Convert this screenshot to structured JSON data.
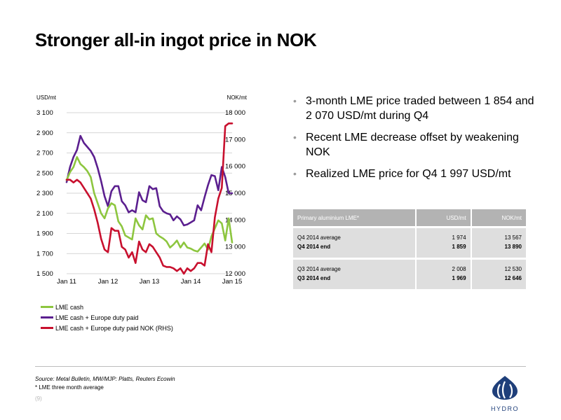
{
  "title": "Stronger all-in ingot price in NOK",
  "bullets": [
    "3-month LME price traded between 1 854 and 2 070 USD/mt during Q4",
    "Recent LME decrease offset by weakening NOK",
    "Realized LME price for Q4 1 997 USD/mt"
  ],
  "table": {
    "headers": [
      "Primary aluminium LME*",
      "USD/mt",
      "NOK/mt"
    ],
    "rows": [
      {
        "label": "Q4 2014 average",
        "usd": "1 974",
        "nok": "13 567"
      },
      {
        "label": "Q4 2014 end",
        "usd": "1 859",
        "nok": "13 890"
      },
      {
        "label": "Q3 2014 average",
        "usd": "2 008",
        "nok": "12 530"
      },
      {
        "label": "Q3 2014 end",
        "usd": "1 969",
        "nok": "12 646"
      }
    ]
  },
  "source": "Source: Metal Bulletin, MW/MJP: Platts, Reuters Ecowin",
  "footnote": "* LME three month average",
  "page_number": "(9)",
  "logo_text": "HYDRO",
  "colors": {
    "lme_cash": "#8dc63f",
    "duty_paid": "#5b1f8f",
    "nok": "#c8102e",
    "accent": "#1f3f7a"
  },
  "chart_data": {
    "type": "line",
    "y_left_label": "USD/mt",
    "y_right_label": "NOK/mt",
    "x_ticks": [
      "Jan 11",
      "Jan 12",
      "Jan 13",
      "Jan 14",
      "Jan 15"
    ],
    "x_range": [
      0,
      48
    ],
    "y_left_ticks": [
      "3 100",
      "2 900",
      "2 700",
      "2 500",
      "2 300",
      "2 100",
      "1 900",
      "1 700",
      "1 500"
    ],
    "y_left_range": [
      1500,
      3100
    ],
    "y_right_ticks": [
      "18 000",
      "17 000",
      "16 000",
      "15 000",
      "14 000",
      "13 000",
      "12 000"
    ],
    "y_right_range": [
      12000,
      18000
    ],
    "series": [
      {
        "name": "LME cash + Europe duty paid",
        "axis": "left",
        "color": "#5b1f8f",
        "x": [
          0,
          1,
          2,
          3,
          4,
          5,
          6,
          7,
          8,
          9,
          10,
          11,
          12,
          13,
          14,
          15,
          16,
          17,
          18,
          19,
          20,
          21,
          22,
          23,
          24,
          25,
          26,
          27,
          28,
          29,
          30,
          31,
          32,
          33,
          34,
          35,
          36,
          37,
          38,
          39,
          40,
          41,
          42,
          43,
          44,
          45,
          46,
          47,
          48
        ],
        "y": [
          2410,
          2560,
          2660,
          2730,
          2870,
          2800,
          2760,
          2720,
          2660,
          2550,
          2420,
          2270,
          2170,
          2320,
          2370,
          2370,
          2220,
          2180,
          2110,
          2130,
          2110,
          2310,
          2230,
          2210,
          2370,
          2340,
          2350,
          2170,
          2120,
          2100,
          2090,
          2030,
          2070,
          2040,
          1980,
          1990,
          2010,
          2030,
          2180,
          2130,
          2260,
          2380,
          2480,
          2470,
          2330,
          2560,
          2460,
          2300,
          2300
        ]
      },
      {
        "name": "LME cash",
        "axis": "left",
        "color": "#8dc63f",
        "x": [
          0,
          1,
          2,
          3,
          4,
          5,
          6,
          7,
          8,
          9,
          10,
          11,
          12,
          13,
          14,
          15,
          16,
          17,
          18,
          19,
          20,
          21,
          22,
          23,
          24,
          25,
          26,
          27,
          28,
          29,
          30,
          31,
          32,
          33,
          34,
          35,
          36,
          37,
          38,
          39,
          40,
          41,
          42,
          43,
          44,
          45,
          46,
          47,
          48
        ],
        "y": [
          2430,
          2510,
          2560,
          2660,
          2590,
          2560,
          2520,
          2460,
          2300,
          2200,
          2100,
          2050,
          2150,
          2200,
          2180,
          2020,
          1970,
          1880,
          1860,
          1840,
          2050,
          1980,
          1940,
          2080,
          2040,
          2050,
          1900,
          1870,
          1850,
          1820,
          1760,
          1790,
          1830,
          1760,
          1810,
          1760,
          1750,
          1730,
          1720,
          1760,
          1800,
          1740,
          1870,
          1950,
          2030,
          2000,
          1830,
          2050,
          1810
        ]
      },
      {
        "name": "LME cash + Europe duty paid NOK (RHS)",
        "axis": "right",
        "color": "#c8102e",
        "x": [
          0,
          1,
          2,
          3,
          4,
          5,
          6,
          7,
          8,
          9,
          10,
          11,
          12,
          13,
          14,
          15,
          16,
          17,
          18,
          19,
          20,
          21,
          22,
          23,
          24,
          25,
          26,
          27,
          28,
          29,
          30,
          31,
          32,
          33,
          34,
          35,
          36,
          37,
          38,
          39,
          40,
          41,
          42,
          43,
          44,
          45,
          46,
          47,
          48
        ],
        "y": [
          15500,
          15500,
          15400,
          15500,
          15400,
          15200,
          15000,
          14800,
          14400,
          13900,
          13300,
          12900,
          12800,
          13700,
          13600,
          13600,
          13000,
          12900,
          12600,
          12800,
          12400,
          13200,
          12900,
          12800,
          13100,
          13000,
          12800,
          12600,
          12300,
          12250,
          12250,
          12200,
          12100,
          12200,
          12000,
          12200,
          12100,
          12200,
          12400,
          12400,
          12300,
          13100,
          12800,
          14100,
          14800,
          15200,
          17500,
          17600,
          17600
        ]
      }
    ]
  }
}
